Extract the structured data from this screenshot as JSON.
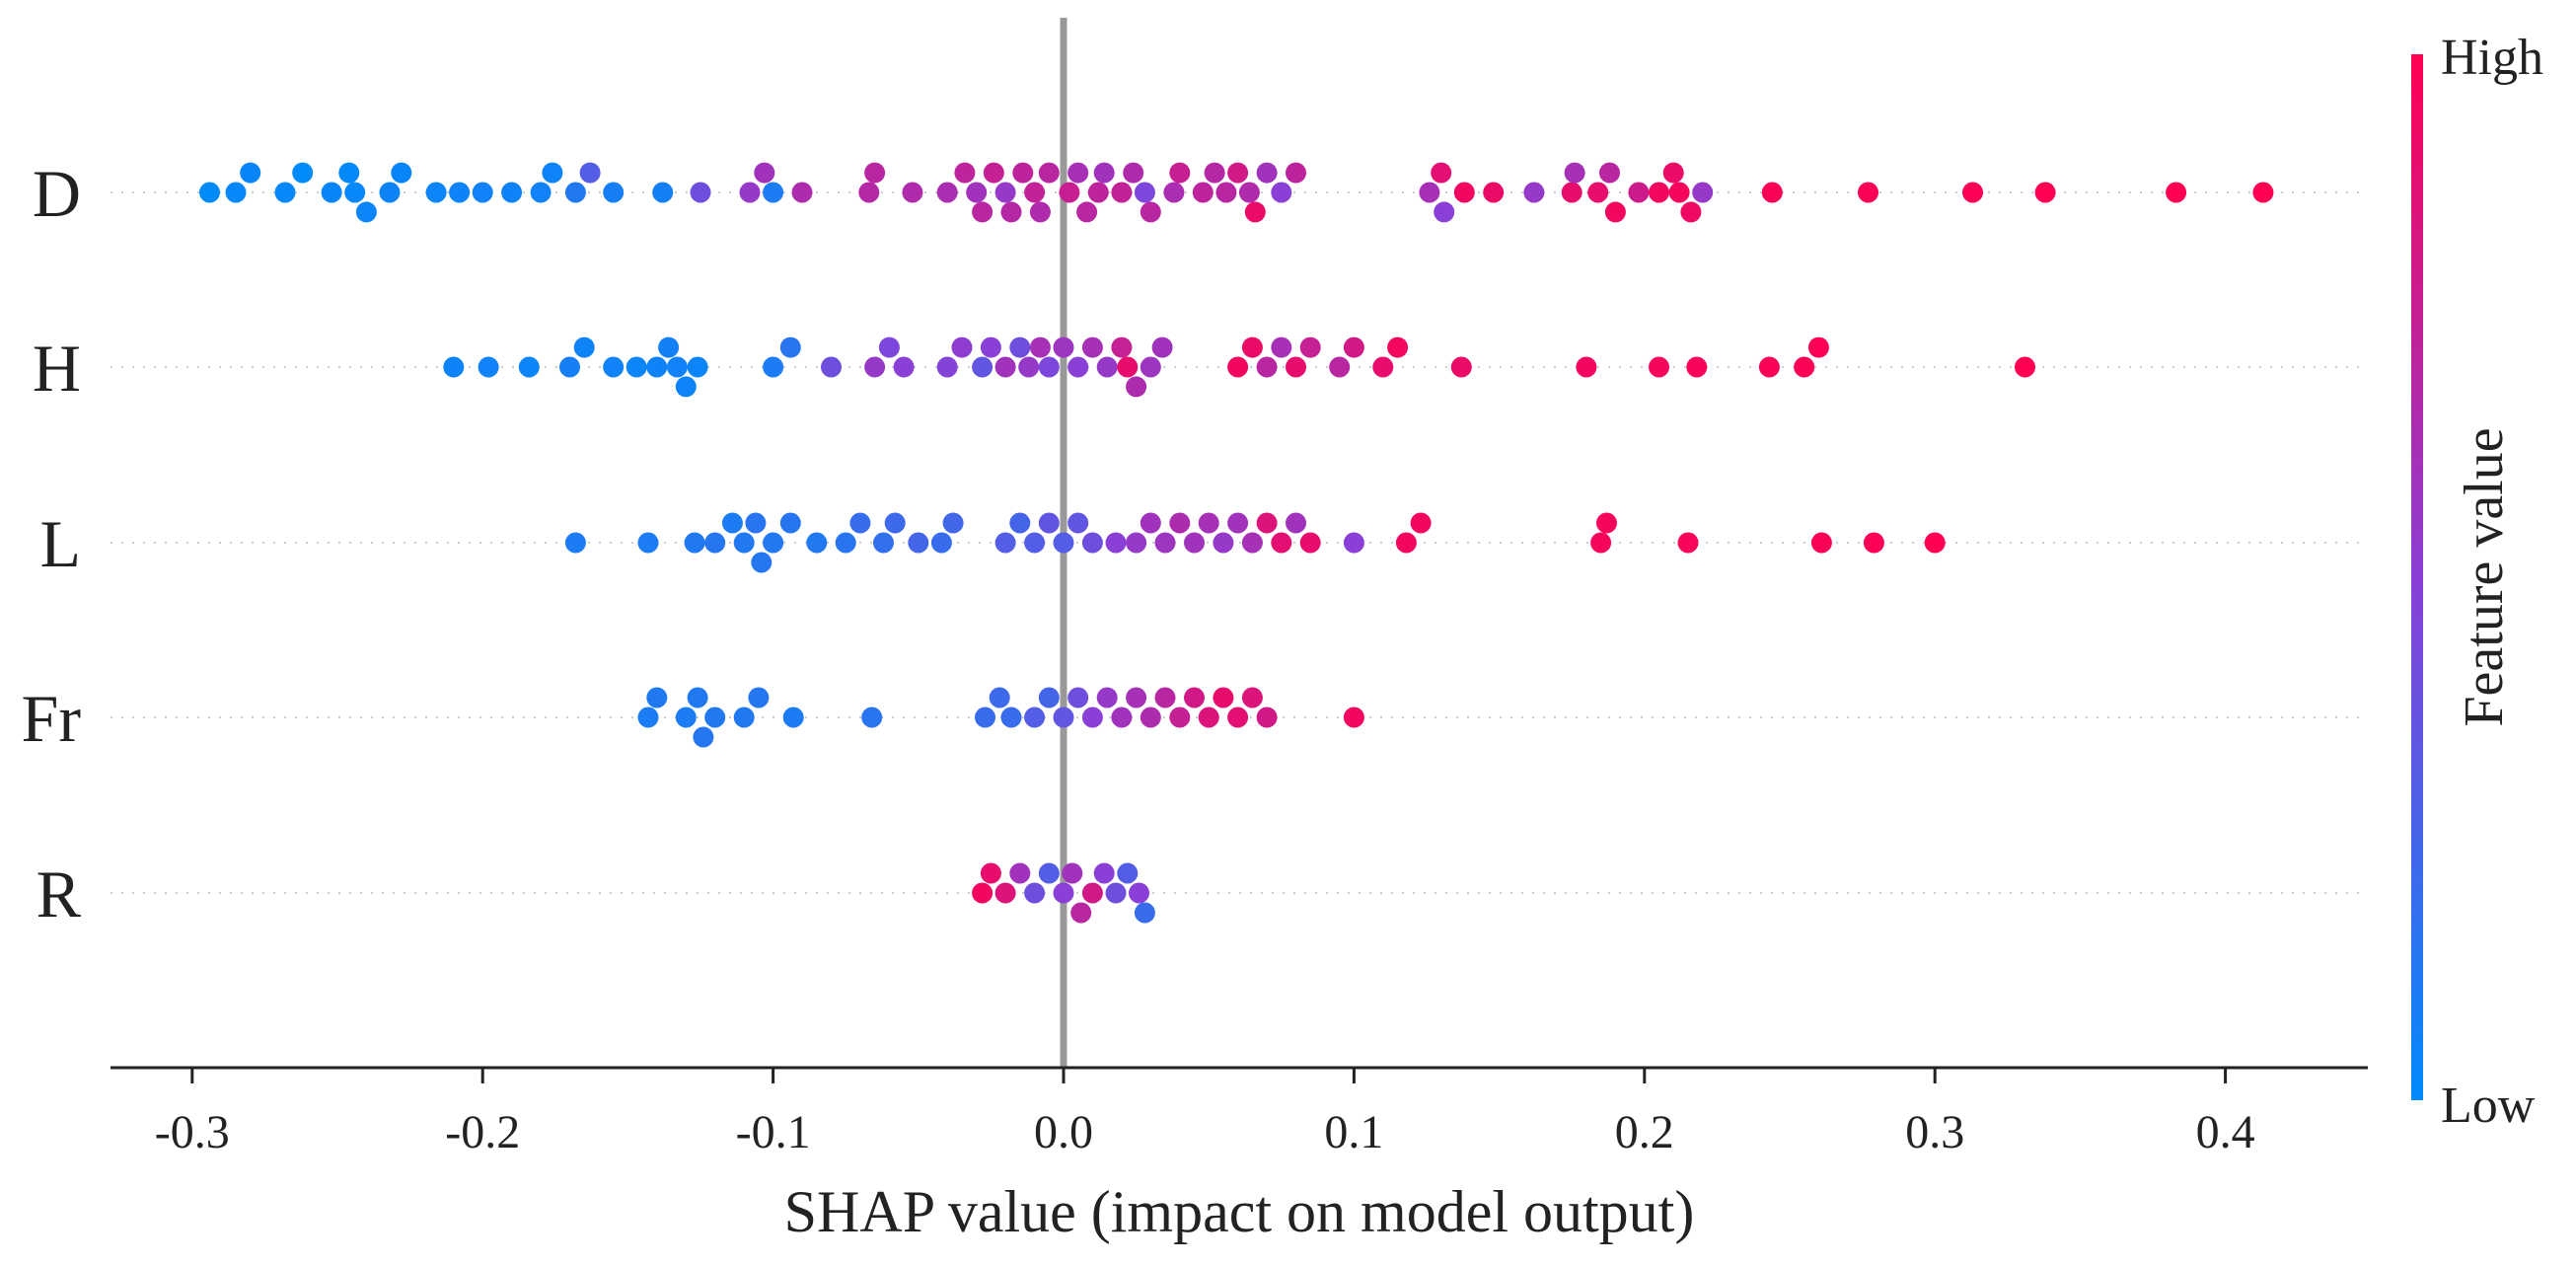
{
  "chart_data": {
    "type": "scatter",
    "subtype": "shap-beeswarm",
    "title": "",
    "xlabel": "SHAP value (impact on model output)",
    "ylabel": "",
    "xlim": [
      -0.33,
      0.45
    ],
    "xticks": [
      -0.3,
      -0.2,
      -0.1,
      0.0,
      0.1,
      0.2,
      0.3,
      0.4
    ],
    "xtick_labels": [
      "-0.3",
      "-0.2",
      "-0.1",
      "0.0",
      "0.1",
      "0.2",
      "0.3",
      "0.4"
    ],
    "features": [
      "D",
      "H",
      "L",
      "Fr",
      "R"
    ],
    "colorbar": {
      "label": "Feature value",
      "high_label": "High",
      "low_label": "Low",
      "low_color": "#008bfb",
      "high_color": "#ff0052"
    },
    "zero_line_color": "#999999",
    "series": [
      {
        "name": "D",
        "points": [
          {
            "x": -0.294,
            "v": 0.0
          },
          {
            "x": -0.285,
            "v": 0.02
          },
          {
            "x": -0.28,
            "v": 0.03
          },
          {
            "x": -0.268,
            "v": 0.02
          },
          {
            "x": -0.262,
            "v": 0.0
          },
          {
            "x": -0.252,
            "v": 0.03
          },
          {
            "x": -0.246,
            "v": 0.01
          },
          {
            "x": -0.244,
            "v": 0.02
          },
          {
            "x": -0.24,
            "v": 0.04
          },
          {
            "x": -0.232,
            "v": 0.05
          },
          {
            "x": -0.228,
            "v": 0.03
          },
          {
            "x": -0.216,
            "v": 0.04
          },
          {
            "x": -0.208,
            "v": 0.05
          },
          {
            "x": -0.2,
            "v": 0.06
          },
          {
            "x": -0.19,
            "v": 0.05
          },
          {
            "x": -0.18,
            "v": 0.06
          },
          {
            "x": -0.176,
            "v": 0.05
          },
          {
            "x": -0.168,
            "v": 0.12
          },
          {
            "x": -0.163,
            "v": 0.3
          },
          {
            "x": -0.155,
            "v": 0.08
          },
          {
            "x": -0.138,
            "v": 0.07
          },
          {
            "x": -0.125,
            "v": 0.4
          },
          {
            "x": -0.108,
            "v": 0.55
          },
          {
            "x": -0.103,
            "v": 0.6
          },
          {
            "x": -0.1,
            "v": 0.1
          },
          {
            "x": -0.09,
            "v": 0.65
          },
          {
            "x": -0.067,
            "v": 0.68
          },
          {
            "x": -0.065,
            "v": 0.7
          },
          {
            "x": -0.052,
            "v": 0.66
          },
          {
            "x": -0.04,
            "v": 0.64
          },
          {
            "x": -0.034,
            "v": 0.72
          },
          {
            "x": -0.03,
            "v": 0.6
          },
          {
            "x": -0.028,
            "v": 0.7
          },
          {
            "x": -0.024,
            "v": 0.75
          },
          {
            "x": -0.02,
            "v": 0.55
          },
          {
            "x": -0.018,
            "v": 0.68
          },
          {
            "x": -0.014,
            "v": 0.72
          },
          {
            "x": -0.01,
            "v": 0.74
          },
          {
            "x": -0.008,
            "v": 0.66
          },
          {
            "x": -0.005,
            "v": 0.7
          },
          {
            "x": 0.002,
            "v": 0.76
          },
          {
            "x": 0.005,
            "v": 0.62
          },
          {
            "x": 0.008,
            "v": 0.7
          },
          {
            "x": 0.012,
            "v": 0.72
          },
          {
            "x": 0.014,
            "v": 0.6
          },
          {
            "x": 0.02,
            "v": 0.74
          },
          {
            "x": 0.024,
            "v": 0.66
          },
          {
            "x": 0.028,
            "v": 0.45
          },
          {
            "x": 0.03,
            "v": 0.7
          },
          {
            "x": 0.038,
            "v": 0.64
          },
          {
            "x": 0.04,
            "v": 0.76
          },
          {
            "x": 0.048,
            "v": 0.72
          },
          {
            "x": 0.052,
            "v": 0.68
          },
          {
            "x": 0.056,
            "v": 0.7
          },
          {
            "x": 0.06,
            "v": 0.8
          },
          {
            "x": 0.064,
            "v": 0.66
          },
          {
            "x": 0.066,
            "v": 0.92
          },
          {
            "x": 0.07,
            "v": 0.6
          },
          {
            "x": 0.075,
            "v": 0.5
          },
          {
            "x": 0.08,
            "v": 0.72
          },
          {
            "x": 0.126,
            "v": 0.62
          },
          {
            "x": 0.13,
            "v": 0.88
          },
          {
            "x": 0.131,
            "v": 0.5
          },
          {
            "x": 0.138,
            "v": 0.95
          },
          {
            "x": 0.148,
            "v": 0.92
          },
          {
            "x": 0.162,
            "v": 0.55
          },
          {
            "x": 0.175,
            "v": 0.9
          },
          {
            "x": 0.176,
            "v": 0.62
          },
          {
            "x": 0.184,
            "v": 0.9
          },
          {
            "x": 0.188,
            "v": 0.7
          },
          {
            "x": 0.19,
            "v": 0.95
          },
          {
            "x": 0.198,
            "v": 0.78
          },
          {
            "x": 0.205,
            "v": 0.95
          },
          {
            "x": 0.21,
            "v": 0.92
          },
          {
            "x": 0.212,
            "v": 0.96
          },
          {
            "x": 0.216,
            "v": 0.93
          },
          {
            "x": 0.22,
            "v": 0.55
          },
          {
            "x": 0.244,
            "v": 0.98
          },
          {
            "x": 0.277,
            "v": 0.98
          },
          {
            "x": 0.313,
            "v": 0.99
          },
          {
            "x": 0.338,
            "v": 1.0
          },
          {
            "x": 0.383,
            "v": 1.0
          },
          {
            "x": 0.413,
            "v": 1.0
          }
        ]
      },
      {
        "name": "H",
        "points": [
          {
            "x": -0.21,
            "v": 0.05
          },
          {
            "x": -0.198,
            "v": 0.06
          },
          {
            "x": -0.184,
            "v": 0.04
          },
          {
            "x": -0.17,
            "v": 0.08
          },
          {
            "x": -0.165,
            "v": 0.05
          },
          {
            "x": -0.155,
            "v": 0.06
          },
          {
            "x": -0.147,
            "v": 0.04
          },
          {
            "x": -0.14,
            "v": 0.05
          },
          {
            "x": -0.136,
            "v": 0.07
          },
          {
            "x": -0.133,
            "v": 0.06
          },
          {
            "x": -0.13,
            "v": 0.05
          },
          {
            "x": -0.126,
            "v": 0.04
          },
          {
            "x": -0.1,
            "v": 0.1
          },
          {
            "x": -0.094,
            "v": 0.15
          },
          {
            "x": -0.08,
            "v": 0.4
          },
          {
            "x": -0.065,
            "v": 0.55
          },
          {
            "x": -0.06,
            "v": 0.45
          },
          {
            "x": -0.055,
            "v": 0.5
          },
          {
            "x": -0.04,
            "v": 0.48
          },
          {
            "x": -0.035,
            "v": 0.52
          },
          {
            "x": -0.028,
            "v": 0.35
          },
          {
            "x": -0.025,
            "v": 0.5
          },
          {
            "x": -0.02,
            "v": 0.6
          },
          {
            "x": -0.015,
            "v": 0.4
          },
          {
            "x": -0.012,
            "v": 0.55
          },
          {
            "x": -0.008,
            "v": 0.62
          },
          {
            "x": -0.005,
            "v": 0.45
          },
          {
            "x": 0.0,
            "v": 0.58
          },
          {
            "x": 0.005,
            "v": 0.5
          },
          {
            "x": 0.01,
            "v": 0.62
          },
          {
            "x": 0.015,
            "v": 0.55
          },
          {
            "x": 0.02,
            "v": 0.75
          },
          {
            "x": 0.022,
            "v": 0.9
          },
          {
            "x": 0.025,
            "v": 0.65
          },
          {
            "x": 0.03,
            "v": 0.58
          },
          {
            "x": 0.034,
            "v": 0.6
          },
          {
            "x": 0.06,
            "v": 0.95
          },
          {
            "x": 0.065,
            "v": 0.92
          },
          {
            "x": 0.07,
            "v": 0.7
          },
          {
            "x": 0.075,
            "v": 0.62
          },
          {
            "x": 0.08,
            "v": 0.9
          },
          {
            "x": 0.085,
            "v": 0.75
          },
          {
            "x": 0.095,
            "v": 0.7
          },
          {
            "x": 0.1,
            "v": 0.8
          },
          {
            "x": 0.11,
            "v": 0.9
          },
          {
            "x": 0.115,
            "v": 0.95
          },
          {
            "x": 0.137,
            "v": 0.92
          },
          {
            "x": 0.18,
            "v": 0.95
          },
          {
            "x": 0.205,
            "v": 0.96
          },
          {
            "x": 0.218,
            "v": 0.97
          },
          {
            "x": 0.243,
            "v": 0.98
          },
          {
            "x": 0.255,
            "v": 0.98
          },
          {
            "x": 0.26,
            "v": 0.99
          },
          {
            "x": 0.331,
            "v": 1.0
          }
        ]
      },
      {
        "name": "L",
        "points": [
          {
            "x": -0.168,
            "v": 0.1
          },
          {
            "x": -0.143,
            "v": 0.1
          },
          {
            "x": -0.127,
            "v": 0.12
          },
          {
            "x": -0.12,
            "v": 0.14
          },
          {
            "x": -0.114,
            "v": 0.1
          },
          {
            "x": -0.11,
            "v": 0.12
          },
          {
            "x": -0.106,
            "v": 0.15
          },
          {
            "x": -0.104,
            "v": 0.13
          },
          {
            "x": -0.1,
            "v": 0.12
          },
          {
            "x": -0.094,
            "v": 0.14
          },
          {
            "x": -0.085,
            "v": 0.12
          },
          {
            "x": -0.075,
            "v": 0.15
          },
          {
            "x": -0.07,
            "v": 0.2
          },
          {
            "x": -0.062,
            "v": 0.18
          },
          {
            "x": -0.058,
            "v": 0.22
          },
          {
            "x": -0.05,
            "v": 0.25
          },
          {
            "x": -0.042,
            "v": 0.2
          },
          {
            "x": -0.038,
            "v": 0.24
          },
          {
            "x": -0.02,
            "v": 0.3
          },
          {
            "x": -0.015,
            "v": 0.25
          },
          {
            "x": -0.01,
            "v": 0.3
          },
          {
            "x": -0.005,
            "v": 0.35
          },
          {
            "x": 0.0,
            "v": 0.3
          },
          {
            "x": 0.005,
            "v": 0.35
          },
          {
            "x": 0.01,
            "v": 0.4
          },
          {
            "x": 0.018,
            "v": 0.5
          },
          {
            "x": 0.025,
            "v": 0.55
          },
          {
            "x": 0.03,
            "v": 0.6
          },
          {
            "x": 0.035,
            "v": 0.58
          },
          {
            "x": 0.04,
            "v": 0.65
          },
          {
            "x": 0.045,
            "v": 0.6
          },
          {
            "x": 0.05,
            "v": 0.62
          },
          {
            "x": 0.055,
            "v": 0.55
          },
          {
            "x": 0.06,
            "v": 0.6
          },
          {
            "x": 0.065,
            "v": 0.62
          },
          {
            "x": 0.07,
            "v": 0.85
          },
          {
            "x": 0.075,
            "v": 0.88
          },
          {
            "x": 0.08,
            "v": 0.6
          },
          {
            "x": 0.085,
            "v": 0.9
          },
          {
            "x": 0.1,
            "v": 0.5
          },
          {
            "x": 0.118,
            "v": 0.95
          },
          {
            "x": 0.123,
            "v": 0.95
          },
          {
            "x": 0.185,
            "v": 0.96
          },
          {
            "x": 0.187,
            "v": 0.96
          },
          {
            "x": 0.215,
            "v": 0.97
          },
          {
            "x": 0.261,
            "v": 0.98
          },
          {
            "x": 0.279,
            "v": 0.99
          },
          {
            "x": 0.3,
            "v": 1.0
          }
        ]
      },
      {
        "name": "Fr",
        "points": [
          {
            "x": -0.143,
            "v": 0.1
          },
          {
            "x": -0.14,
            "v": 0.12
          },
          {
            "x": -0.13,
            "v": 0.1
          },
          {
            "x": -0.126,
            "v": 0.12
          },
          {
            "x": -0.124,
            "v": 0.14
          },
          {
            "x": -0.12,
            "v": 0.12
          },
          {
            "x": -0.11,
            "v": 0.12
          },
          {
            "x": -0.105,
            "v": 0.14
          },
          {
            "x": -0.093,
            "v": 0.1
          },
          {
            "x": -0.066,
            "v": 0.15
          },
          {
            "x": -0.027,
            "v": 0.2
          },
          {
            "x": -0.022,
            "v": 0.22
          },
          {
            "x": -0.018,
            "v": 0.2
          },
          {
            "x": -0.01,
            "v": 0.3
          },
          {
            "x": -0.005,
            "v": 0.25
          },
          {
            "x": 0.0,
            "v": 0.35
          },
          {
            "x": 0.005,
            "v": 0.4
          },
          {
            "x": 0.01,
            "v": 0.5
          },
          {
            "x": 0.015,
            "v": 0.55
          },
          {
            "x": 0.02,
            "v": 0.6
          },
          {
            "x": 0.025,
            "v": 0.62
          },
          {
            "x": 0.03,
            "v": 0.65
          },
          {
            "x": 0.035,
            "v": 0.7
          },
          {
            "x": 0.04,
            "v": 0.75
          },
          {
            "x": 0.045,
            "v": 0.8
          },
          {
            "x": 0.05,
            "v": 0.85
          },
          {
            "x": 0.055,
            "v": 0.9
          },
          {
            "x": 0.06,
            "v": 0.88
          },
          {
            "x": 0.065,
            "v": 0.85
          },
          {
            "x": 0.07,
            "v": 0.8
          },
          {
            "x": 0.1,
            "v": 0.95
          }
        ]
      },
      {
        "name": "R",
        "points": [
          {
            "x": -0.028,
            "v": 0.95
          },
          {
            "x": -0.025,
            "v": 0.9
          },
          {
            "x": -0.02,
            "v": 0.85
          },
          {
            "x": -0.015,
            "v": 0.6
          },
          {
            "x": -0.01,
            "v": 0.4
          },
          {
            "x": -0.005,
            "v": 0.3
          },
          {
            "x": 0.0,
            "v": 0.5
          },
          {
            "x": 0.003,
            "v": 0.6
          },
          {
            "x": 0.006,
            "v": 0.7
          },
          {
            "x": 0.01,
            "v": 0.8
          },
          {
            "x": 0.014,
            "v": 0.5
          },
          {
            "x": 0.018,
            "v": 0.4
          },
          {
            "x": 0.022,
            "v": 0.3
          },
          {
            "x": 0.026,
            "v": 0.5
          },
          {
            "x": 0.028,
            "v": 0.2
          }
        ]
      }
    ]
  }
}
